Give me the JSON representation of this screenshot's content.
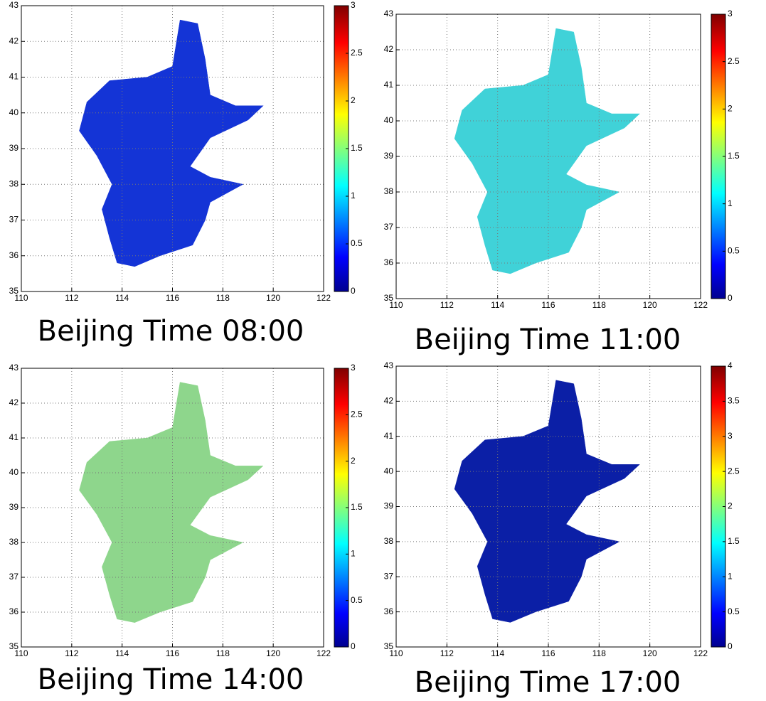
{
  "chart_data": [
    {
      "type": "map",
      "title": "Beijing Time 08:00",
      "xlim": [
        110,
        122
      ],
      "ylim": [
        35,
        43
      ],
      "xticks": [
        110,
        112,
        114,
        116,
        118,
        120,
        122
      ],
      "yticks": [
        35,
        36,
        37,
        38,
        39,
        40,
        41,
        42,
        43
      ],
      "grid": true,
      "colormap": "jet",
      "clim": [
        0,
        3
      ],
      "colorbar_ticks": [
        0,
        0.5,
        1,
        1.5,
        2,
        2.5,
        3
      ],
      "color": "#1434d6"
    },
    {
      "type": "map",
      "title": "Beijing Time 11:00",
      "xlim": [
        110,
        122
      ],
      "ylim": [
        35,
        43
      ],
      "xticks": [
        110,
        112,
        114,
        116,
        118,
        120,
        122
      ],
      "yticks": [
        35,
        36,
        37,
        38,
        39,
        40,
        41,
        42,
        43
      ],
      "grid": true,
      "colormap": "jet",
      "clim": [
        0,
        3
      ],
      "colorbar_ticks": [
        0,
        0.5,
        1,
        1.5,
        2,
        2.5,
        3
      ],
      "color": "#40d2d8"
    },
    {
      "type": "map",
      "title": "Beijing Time 14:00",
      "xlim": [
        110,
        122
      ],
      "ylim": [
        35,
        43
      ],
      "xticks": [
        110,
        112,
        114,
        116,
        118,
        120,
        122
      ],
      "yticks": [
        35,
        36,
        37,
        38,
        39,
        40,
        41,
        42,
        43
      ],
      "grid": true,
      "colormap": "jet",
      "clim": [
        0,
        3
      ],
      "colorbar_ticks": [
        0,
        0.5,
        1,
        1.5,
        2,
        2.5,
        3
      ],
      "color": "#8ed68c"
    },
    {
      "type": "map",
      "title": "Beijing Time 17:00",
      "xlim": [
        110,
        122
      ],
      "ylim": [
        35,
        43
      ],
      "xticks": [
        110,
        112,
        114,
        116,
        118,
        120,
        122
      ],
      "yticks": [
        35,
        36,
        37,
        38,
        39,
        40,
        41,
        42,
        43
      ],
      "grid": true,
      "colormap": "jet",
      "clim": [
        0,
        4
      ],
      "colorbar_ticks": [
        0,
        0.5,
        1,
        1.5,
        2,
        2.5,
        3,
        3.5,
        4
      ],
      "color": "#0b1fa6"
    }
  ]
}
